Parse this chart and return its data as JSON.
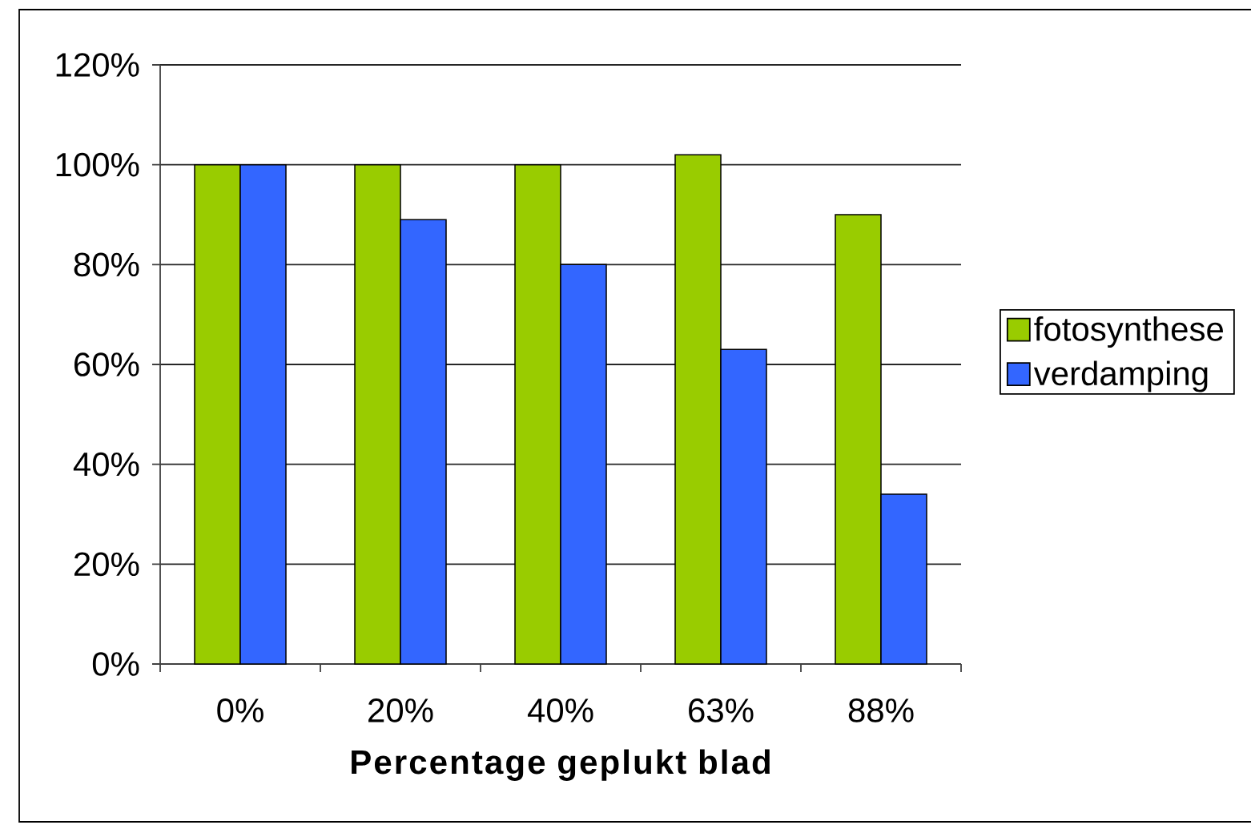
{
  "chart_data": {
    "type": "bar",
    "xlabel": "Percentage geplukt blad",
    "categories": [
      "0%",
      "20%",
      "40%",
      "63%",
      "88%"
    ],
    "series": [
      {
        "name": "fotosynthese",
        "color": "#99cc00",
        "values": [
          100,
          100,
          100,
          102,
          90
        ]
      },
      {
        "name": "verdamping",
        "color": "#3366ff",
        "values": [
          100,
          89,
          80,
          63,
          34
        ]
      }
    ],
    "ylim": [
      0,
      120
    ],
    "yticks": [
      {
        "value": 0,
        "label": "0%"
      },
      {
        "value": 20,
        "label": "20%"
      },
      {
        "value": 40,
        "label": "40%"
      },
      {
        "value": 60,
        "label": "60%"
      },
      {
        "value": 80,
        "label": "80%"
      },
      {
        "value": 100,
        "label": "100%"
      },
      {
        "value": 120,
        "label": "120%"
      }
    ],
    "grid": "y",
    "legend": "right"
  }
}
